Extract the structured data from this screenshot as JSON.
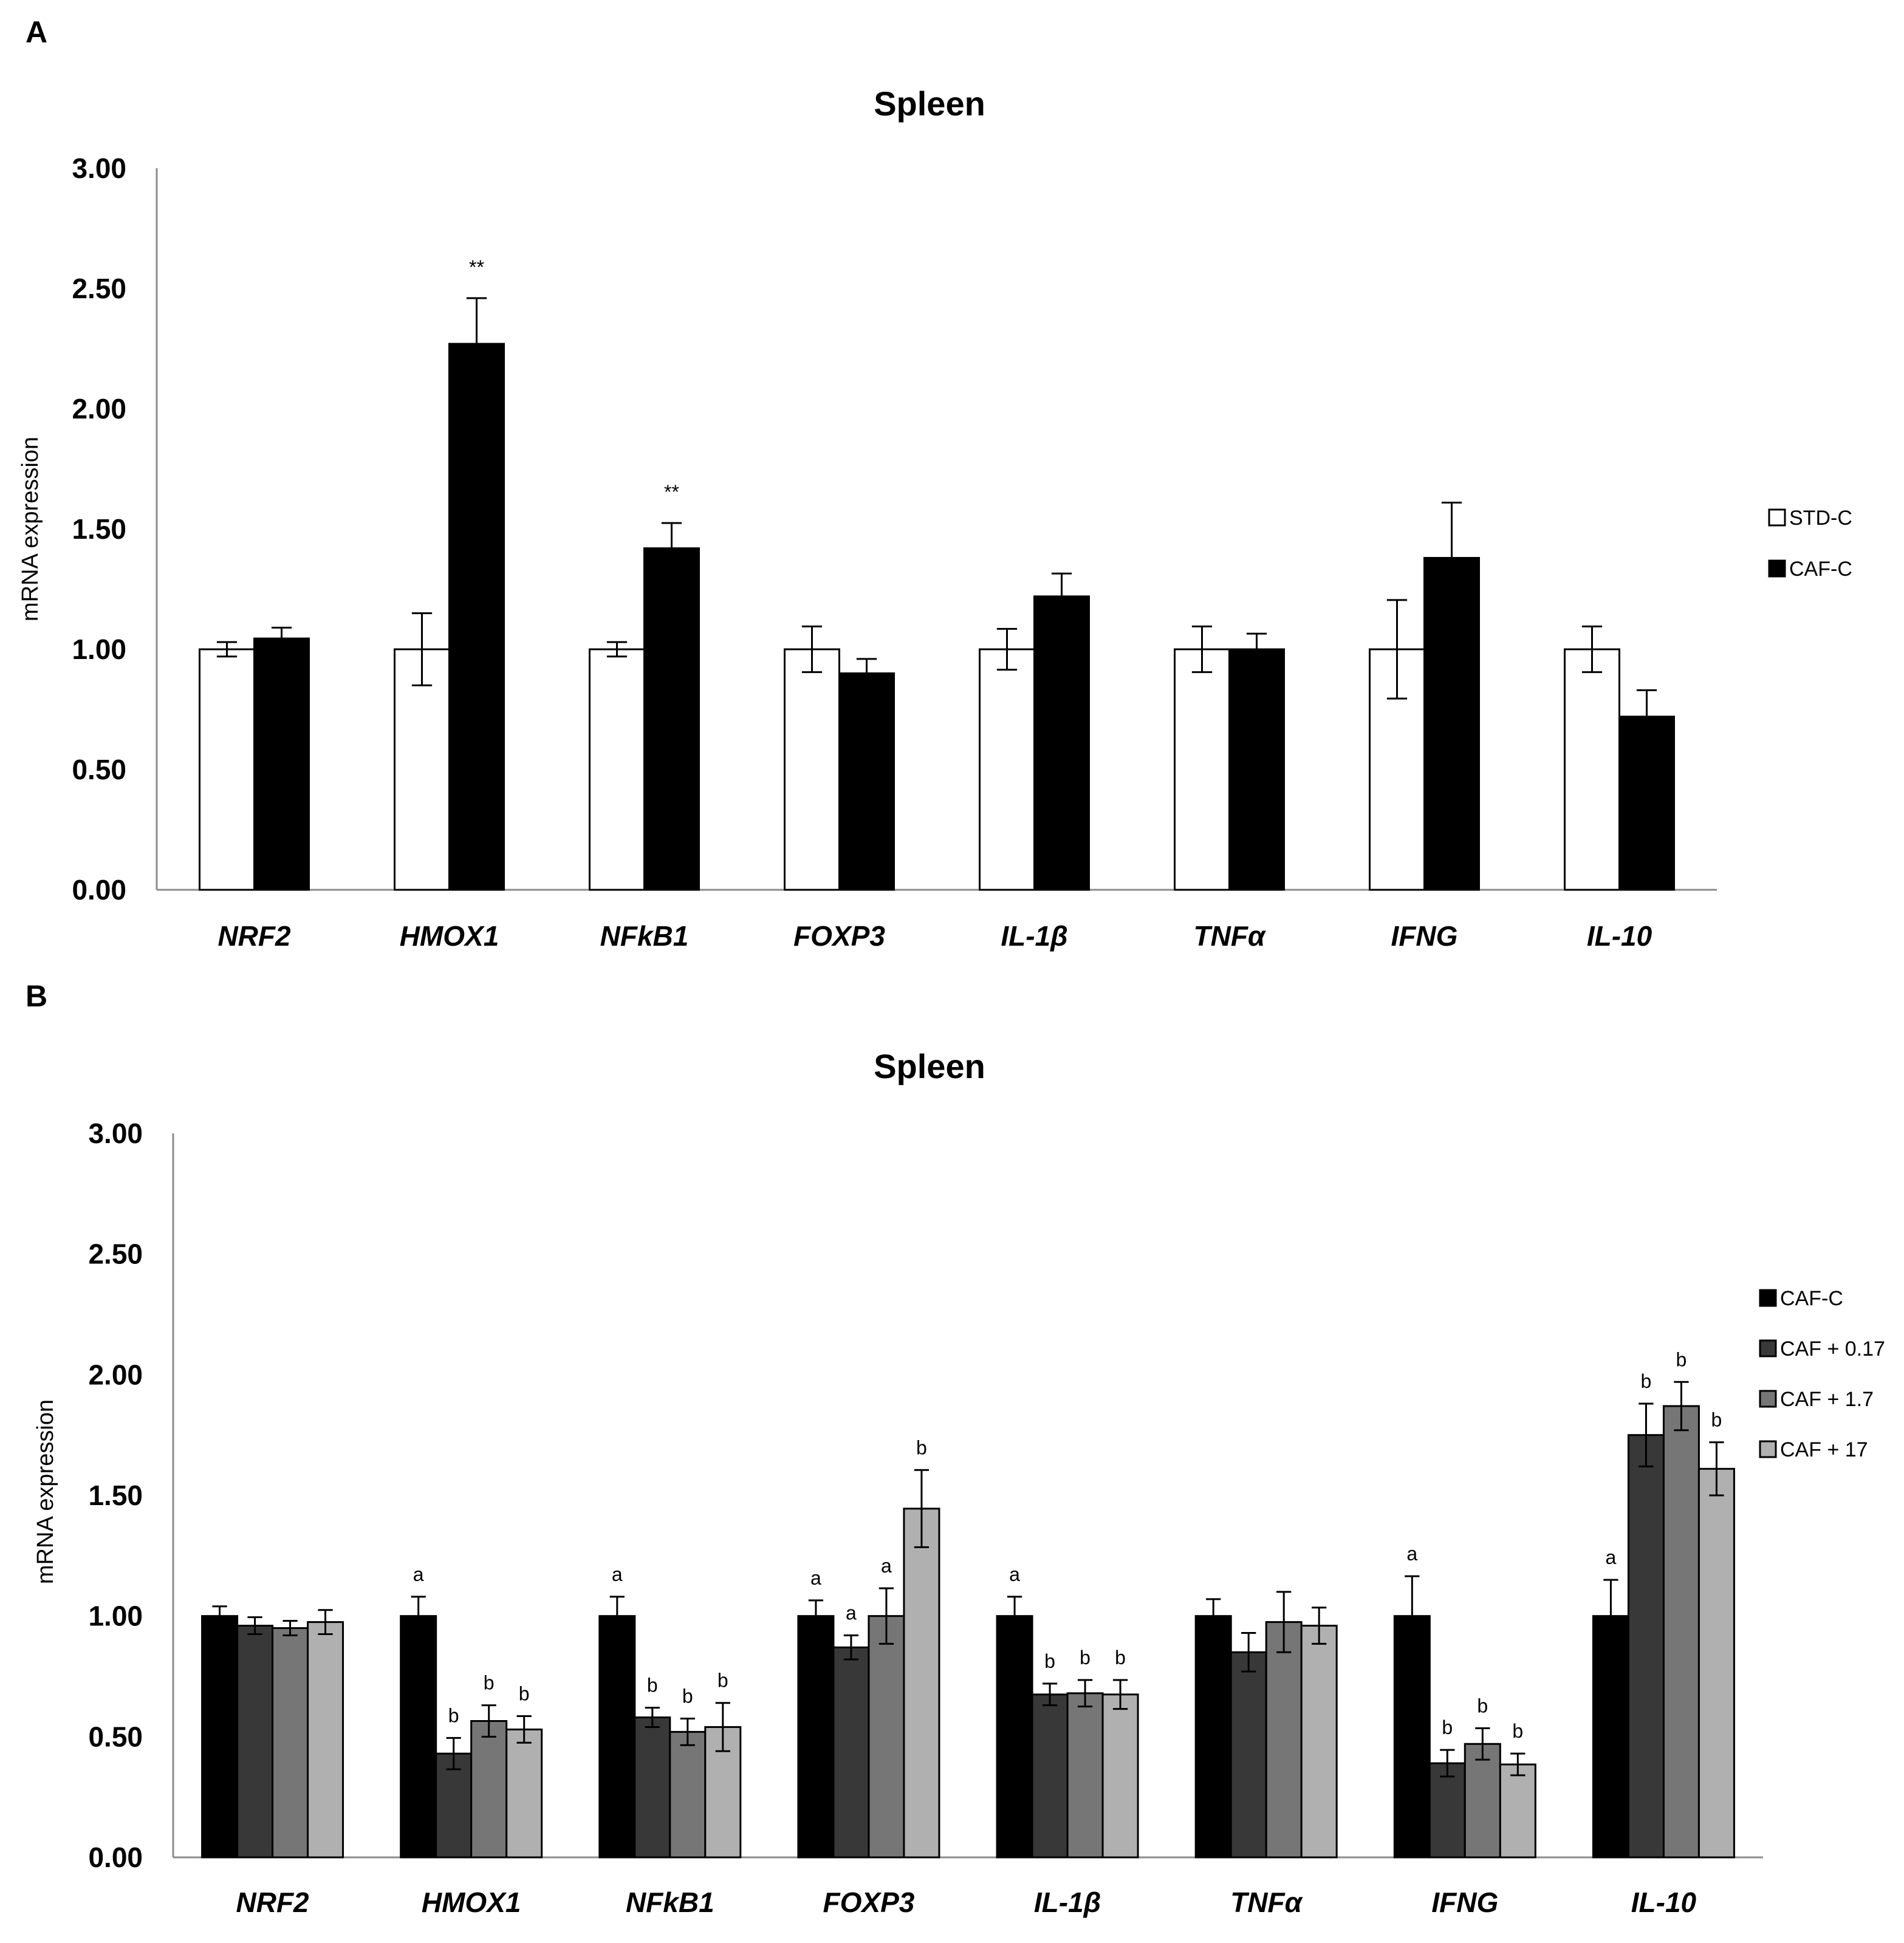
{
  "chart_data": [
    {
      "panel": "A",
      "type": "bar",
      "title": "Spleen",
      "xlabel": "",
      "ylabel": "mRNA expression",
      "ylim": [
        0,
        3
      ],
      "yticks": [
        "0.00",
        "0.50",
        "1.00",
        "1.50",
        "2.00",
        "2.50",
        "3.00"
      ],
      "categories": [
        "NRF2",
        "HMOX1",
        "NFkB1",
        "FOXP3",
        "IL-1β",
        "TNFα",
        "IFNG",
        "IL-10"
      ],
      "series": [
        {
          "name": "STD-C",
          "color": "#ffffff",
          "values": [
            1.0,
            1.0,
            1.0,
            1.0,
            1.0,
            1.0,
            1.0,
            1.0
          ],
          "errors": [
            0.03,
            0.15,
            0.03,
            0.095,
            0.085,
            0.095,
            0.205,
            0.095
          ]
        },
        {
          "name": "CAF-C",
          "color": "#000000",
          "values": [
            1.045,
            2.27,
            1.42,
            0.9,
            1.22,
            1.0,
            1.38,
            0.72
          ],
          "errors": [
            0.045,
            0.19,
            0.105,
            0.06,
            0.095,
            0.065,
            0.23,
            0.11
          ]
        }
      ],
      "annotations": [
        {
          "series": 1,
          "category": 1,
          "text": "**"
        },
        {
          "series": 1,
          "category": 2,
          "text": "**"
        }
      ]
    },
    {
      "panel": "B",
      "type": "bar",
      "title": "Spleen",
      "xlabel": "",
      "ylabel": "mRNA expression",
      "ylim": [
        0,
        3
      ],
      "yticks": [
        "0.00",
        "0.50",
        "1.00",
        "1.50",
        "2.00",
        "2.50",
        "3.00"
      ],
      "categories": [
        "NRF2",
        "HMOX1",
        "NFkB1",
        "FOXP3",
        "IL-1β",
        "TNFα",
        "IFNG",
        "IL-10"
      ],
      "series": [
        {
          "name": "CAF-C",
          "color": "#000000",
          "values": [
            1.0,
            1.0,
            1.0,
            1.0,
            1.0,
            1.0,
            1.0,
            1.0
          ],
          "errors": [
            0.04,
            0.08,
            0.08,
            0.065,
            0.08,
            0.07,
            0.165,
            0.15
          ]
        },
        {
          "name": "CAF + 0.17",
          "color": "#383838",
          "values": [
            0.96,
            0.43,
            0.58,
            0.87,
            0.675,
            0.85,
            0.39,
            1.75
          ],
          "errors": [
            0.035,
            0.065,
            0.04,
            0.05,
            0.045,
            0.08,
            0.055,
            0.13
          ]
        },
        {
          "name": "CAF + 1.7",
          "color": "#767676",
          "values": [
            0.95,
            0.565,
            0.52,
            1.0,
            0.68,
            0.975,
            0.47,
            1.87
          ],
          "errors": [
            0.03,
            0.065,
            0.055,
            0.115,
            0.055,
            0.125,
            0.065,
            0.1
          ]
        },
        {
          "name": "CAF + 17",
          "color": "#b0b0b0",
          "values": [
            0.975,
            0.53,
            0.54,
            1.445,
            0.675,
            0.96,
            0.385,
            1.61
          ],
          "errors": [
            0.05,
            0.055,
            0.1,
            0.16,
            0.06,
            0.075,
            0.045,
            0.11
          ]
        }
      ],
      "annotations": [
        {
          "series": 0,
          "category": 1,
          "text": "a"
        },
        {
          "series": 1,
          "category": 1,
          "text": "b"
        },
        {
          "series": 2,
          "category": 1,
          "text": "b"
        },
        {
          "series": 3,
          "category": 1,
          "text": "b"
        },
        {
          "series": 0,
          "category": 2,
          "text": "a"
        },
        {
          "series": 1,
          "category": 2,
          "text": "b"
        },
        {
          "series": 2,
          "category": 2,
          "text": "b"
        },
        {
          "series": 3,
          "category": 2,
          "text": "b"
        },
        {
          "series": 0,
          "category": 3,
          "text": "a"
        },
        {
          "series": 1,
          "category": 3,
          "text": "a"
        },
        {
          "series": 2,
          "category": 3,
          "text": "a"
        },
        {
          "series": 3,
          "category": 3,
          "text": "b"
        },
        {
          "series": 0,
          "category": 4,
          "text": "a"
        },
        {
          "series": 1,
          "category": 4,
          "text": "b"
        },
        {
          "series": 2,
          "category": 4,
          "text": "b"
        },
        {
          "series": 3,
          "category": 4,
          "text": "b"
        },
        {
          "series": 0,
          "category": 6,
          "text": "a"
        },
        {
          "series": 1,
          "category": 6,
          "text": "b"
        },
        {
          "series": 2,
          "category": 6,
          "text": "b"
        },
        {
          "series": 3,
          "category": 6,
          "text": "b"
        },
        {
          "series": 0,
          "category": 7,
          "text": "a"
        },
        {
          "series": 1,
          "category": 7,
          "text": "b"
        },
        {
          "series": 2,
          "category": 7,
          "text": "b"
        },
        {
          "series": 3,
          "category": 7,
          "text": "b"
        }
      ]
    }
  ]
}
